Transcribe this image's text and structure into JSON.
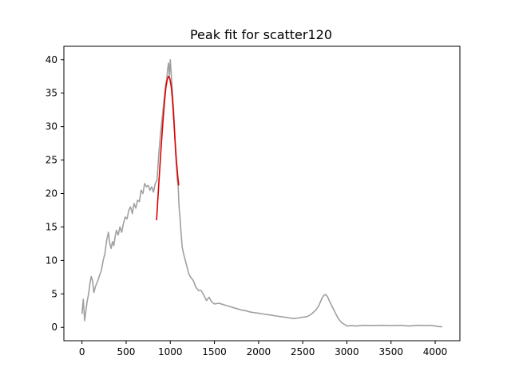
{
  "chart_data": {
    "type": "line",
    "title": "Peak fit for scatter120",
    "xlabel": "",
    "ylabel": "",
    "xlim": [
      -205,
      4280
    ],
    "ylim": [
      -2,
      42
    ],
    "xticks": [
      0,
      500,
      1000,
      1500,
      2000,
      2500,
      3000,
      3500,
      4000
    ],
    "yticks": [
      0,
      5,
      10,
      15,
      20,
      25,
      30,
      35,
      40
    ],
    "grid": false,
    "legend": "none",
    "series": [
      {
        "color": "#a0a0a0",
        "x": [
          0,
          15,
          30,
          45,
          60,
          75,
          90,
          105,
          120,
          135,
          150,
          165,
          180,
          200,
          220,
          240,
          260,
          280,
          300,
          315,
          330,
          345,
          360,
          375,
          390,
          410,
          430,
          450,
          470,
          490,
          510,
          530,
          550,
          570,
          590,
          610,
          630,
          650,
          670,
          690,
          710,
          730,
          750,
          770,
          790,
          810,
          830,
          850,
          870,
          890,
          910,
          930,
          950,
          960,
          970,
          980,
          990,
          1000,
          1010,
          1020,
          1030,
          1040,
          1050,
          1060,
          1070,
          1080,
          1090,
          1100,
          1110,
          1120,
          1135,
          1150,
          1170,
          1190,
          1210,
          1230,
          1260,
          1290,
          1320,
          1350,
          1380,
          1410,
          1440,
          1470,
          1500,
          1550,
          1600,
          1650,
          1700,
          1750,
          1800,
          1850,
          1900,
          1950,
          2000,
          2050,
          2100,
          2150,
          2200,
          2250,
          2300,
          2350,
          2400,
          2450,
          2500,
          2550,
          2600,
          2650,
          2680,
          2700,
          2720,
          2740,
          2760,
          2780,
          2800,
          2830,
          2860,
          2890,
          2920,
          2950,
          2980,
          3000,
          3050,
          3100,
          3200,
          3300,
          3400,
          3500,
          3600,
          3700,
          3800,
          3900,
          3950,
          4000,
          4050,
          4080
        ],
        "y": [
          2.0,
          4.2,
          1.0,
          2.5,
          4.0,
          5.0,
          6.5,
          7.6,
          7.0,
          5.2,
          6.0,
          6.5,
          7.0,
          7.8,
          8.5,
          10.0,
          11.0,
          13.0,
          14.2,
          12.5,
          11.8,
          12.8,
          12.2,
          13.5,
          14.5,
          13.8,
          15.0,
          14.2,
          15.5,
          16.5,
          16.2,
          17.5,
          18.0,
          17.0,
          18.5,
          17.8,
          19.0,
          18.8,
          20.5,
          20.0,
          21.5,
          21.0,
          21.2,
          20.5,
          21.0,
          20.2,
          21.5,
          22.0,
          26.0,
          29.0,
          31.5,
          34.0,
          36.5,
          37.0,
          38.5,
          39.5,
          37.5,
          40.0,
          38.0,
          36.0,
          34.0,
          32.0,
          29.0,
          26.0,
          24.0,
          22.0,
          21.0,
          18.0,
          16.5,
          14.5,
          12.0,
          11.0,
          10.0,
          9.0,
          8.0,
          7.5,
          7.0,
          6.0,
          5.5,
          5.5,
          4.8,
          4.0,
          4.5,
          3.8,
          3.5,
          3.6,
          3.4,
          3.2,
          3.0,
          2.8,
          2.6,
          2.5,
          2.3,
          2.2,
          2.1,
          2.0,
          1.9,
          1.8,
          1.7,
          1.6,
          1.5,
          1.4,
          1.3,
          1.4,
          1.5,
          1.6,
          2.0,
          2.6,
          3.2,
          3.8,
          4.4,
          4.8,
          4.9,
          4.6,
          4.0,
          3.2,
          2.4,
          1.6,
          1.0,
          0.6,
          0.4,
          0.2,
          0.25,
          0.2,
          0.3,
          0.25,
          0.3,
          0.25,
          0.3,
          0.2,
          0.3,
          0.25,
          0.3,
          0.2,
          0.1,
          0.1
        ]
      },
      {
        "color": "#e00000",
        "x": [
          845,
          870,
          895,
          915,
          935,
          950,
          965,
          980,
          995,
          1010,
          1025,
          1040,
          1055,
          1070,
          1085,
          1095
        ],
        "y": [
          16.0,
          21.5,
          26.5,
          30.5,
          33.8,
          35.8,
          37.0,
          37.5,
          37.2,
          36.0,
          34.0,
          31.0,
          27.8,
          24.8,
          22.5,
          21.2
        ]
      }
    ]
  }
}
